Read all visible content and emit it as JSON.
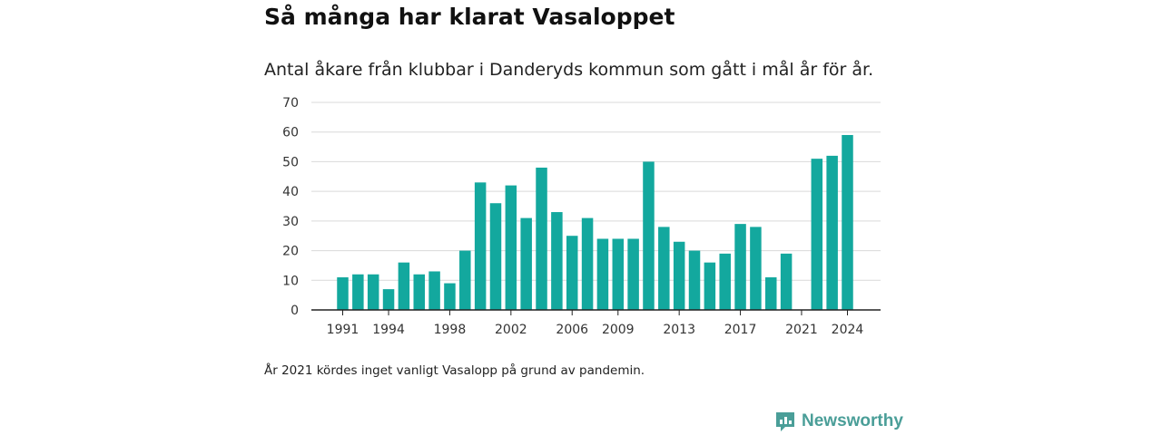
{
  "title": "Så många har klarat Vasaloppet",
  "subtitle": "Antal åkare från klubbar i Danderyds kommun som gått i mål år för år.",
  "note": "År 2021 kördes inget vanligt Vasalopp på grund av pandemin.",
  "brand": "Newsworthy",
  "colors": {
    "bar": "#13a89e",
    "brand": "#4a9e98",
    "grid": "#d9d9d9",
    "axis": "#222222"
  },
  "chart_data": {
    "type": "bar",
    "title": "",
    "xlabel": "",
    "ylabel": "",
    "categories": [
      1991,
      1992,
      1993,
      1994,
      1995,
      1996,
      1997,
      1998,
      1999,
      2000,
      2001,
      2002,
      2003,
      2004,
      2005,
      2006,
      2007,
      2008,
      2009,
      2010,
      2011,
      2012,
      2013,
      2014,
      2015,
      2016,
      2017,
      2018,
      2019,
      2020,
      2021,
      2022,
      2023,
      2024
    ],
    "values": [
      11,
      12,
      12,
      7,
      16,
      12,
      13,
      9,
      20,
      43,
      36,
      42,
      31,
      48,
      33,
      25,
      31,
      24,
      24,
      24,
      50,
      28,
      23,
      20,
      16,
      19,
      29,
      28,
      11,
      19,
      null,
      51,
      52,
      59
    ],
    "xticks": [
      "1991",
      "1994",
      "1998",
      "2002",
      "2006",
      "2009",
      "2013",
      "2017",
      "2021",
      "2024"
    ],
    "yticks": [
      "0",
      "10",
      "20",
      "30",
      "40",
      "50",
      "60",
      "70"
    ],
    "ylim": [
      0,
      70
    ],
    "grid": true,
    "legend": "none"
  }
}
